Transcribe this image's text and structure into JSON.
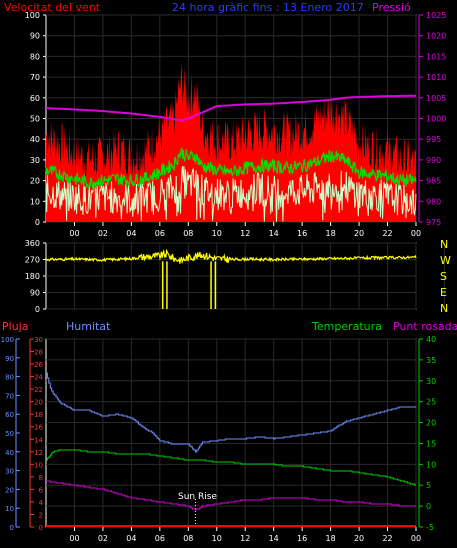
{
  "header": {
    "wind_title": "Velocitat del vent",
    "date_title": "24 hora gràfic fins : 13 Enero 2017",
    "pressure_title": "Pressió"
  },
  "compass_letters": [
    "N",
    "W",
    "S",
    "E",
    "N"
  ],
  "bottom_header": {
    "rain_label": "Pluja",
    "humidity_label": "Humitat",
    "temperature_label": "Temperatura",
    "dewpoint_label": "Punt rosada"
  },
  "annotation": {
    "sunrise": "Sun Rise",
    "sunrise_hour": 8.5
  },
  "colors": {
    "wind_gust": "#ff0000",
    "wind_avg": "#00e000",
    "wind_speed": "#ccffcc",
    "pressure": "#dd00dd",
    "direction": "#ffff00",
    "humidity": "#6f8fff",
    "temperature": "#00d000",
    "dewpoint": "#dd00dd",
    "rain": "#ff0000",
    "axis_white": "#ffffff",
    "grid": "#2a2a2a"
  },
  "chart_data": [
    {
      "id": "wind-pressure",
      "type": "line",
      "ylim_left": [
        0,
        100
      ],
      "yticks_left": [
        "0",
        "10",
        "20",
        "30",
        "40",
        "50",
        "60",
        "70",
        "80",
        "90",
        "100"
      ],
      "ylim_right": [
        975,
        1025
      ],
      "yticks_right": [
        "975",
        "980",
        "985",
        "990",
        "995",
        "1000",
        "1005",
        "1010",
        "1015",
        "1020",
        "1025"
      ],
      "xlim": [
        -2,
        24
      ],
      "xticks": [
        "00",
        "02",
        "04",
        "06",
        "08",
        "10",
        "12",
        "14",
        "16",
        "18",
        "20",
        "22",
        "00"
      ],
      "series": [
        {
          "key": "gust",
          "axis": "left",
          "x": [
            -2,
            -1,
            0,
            1,
            2,
            3,
            4,
            5,
            6,
            7,
            7.5,
            8,
            8.5,
            9,
            10,
            11,
            12,
            13,
            14,
            15,
            16,
            17,
            18,
            19,
            20,
            21,
            22,
            23,
            24
          ],
          "y": [
            42,
            38,
            33,
            30,
            31,
            36,
            32,
            34,
            42,
            50,
            68,
            60,
            64,
            45,
            40,
            38,
            42,
            45,
            44,
            42,
            44,
            48,
            55,
            50,
            38,
            36,
            34,
            30,
            28
          ]
        },
        {
          "key": "avg",
          "axis": "left",
          "x": [
            -2,
            -1,
            0,
            1,
            2,
            3,
            4,
            5,
            6,
            7,
            7.5,
            8,
            8.5,
            9,
            10,
            11,
            12,
            13,
            14,
            15,
            16,
            17,
            18,
            19,
            20,
            21,
            22,
            23,
            24
          ],
          "y": [
            25,
            23,
            21,
            19,
            20,
            21,
            20,
            21,
            24,
            28,
            34,
            31,
            32,
            27,
            25,
            24,
            26,
            27,
            27,
            26,
            27,
            29,
            32,
            30,
            24,
            23,
            22,
            20,
            20
          ]
        },
        {
          "key": "speed",
          "axis": "left",
          "x": [
            -2,
            -1,
            0,
            1,
            2,
            3,
            4,
            5,
            6,
            7,
            7.5,
            8,
            8.5,
            9,
            10,
            11,
            12,
            13,
            14,
            15,
            16,
            17,
            18,
            19,
            20,
            21,
            22,
            23,
            24
          ],
          "y": [
            15,
            13,
            12,
            11,
            12,
            12,
            11,
            12,
            14,
            16,
            20,
            18,
            19,
            15,
            14,
            13,
            15,
            16,
            15,
            15,
            15,
            16,
            18,
            17,
            14,
            13,
            12,
            11,
            10
          ]
        },
        {
          "key": "pressure",
          "axis": "right",
          "x": [
            -2,
            0,
            2,
            4,
            6,
            7,
            7.5,
            8,
            9,
            10,
            12,
            14,
            16,
            18,
            19,
            20,
            22,
            24
          ],
          "y": [
            1002.5,
            1002.2,
            1001.8,
            1001.2,
            1000.4,
            999.8,
            999.5,
            1000,
            1001.5,
            1003,
            1003.4,
            1003.6,
            1004,
            1004.5,
            1005,
            1005.2,
            1005.4,
            1005.5
          ]
        }
      ]
    },
    {
      "id": "wind-direction",
      "type": "scatter",
      "ylim": [
        0,
        360
      ],
      "yticks": [
        "0",
        "90",
        "180",
        "270",
        "360"
      ],
      "xlim": [
        -2,
        24
      ],
      "series": [
        {
          "key": "direction",
          "x": [
            -2,
            0,
            2,
            4,
            5,
            6,
            6.5,
            7,
            7.5,
            8,
            9,
            9.5,
            10,
            11,
            12,
            14,
            16,
            18,
            20,
            22,
            24
          ],
          "y": [
            270,
            272,
            268,
            275,
            285,
            290,
            300,
            275,
            265,
            280,
            295,
            285,
            275,
            270,
            272,
            270,
            272,
            275,
            278,
            280,
            282
          ]
        }
      ],
      "drops_x": [
        6.2,
        6.5,
        9.6,
        9.9
      ]
    },
    {
      "id": "temp-humidity",
      "type": "line",
      "ylim_rain": [
        0,
        30
      ],
      "yticks_rain": [
        "0",
        "2",
        "4",
        "6",
        "8",
        "10",
        "12",
        "14",
        "16",
        "18",
        "20",
        "22",
        "24",
        "26",
        "28",
        "30"
      ],
      "ylim_humidity": [
        0,
        100
      ],
      "yticks_humidity": [
        "0",
        "10",
        "20",
        "30",
        "40",
        "50",
        "60",
        "70",
        "80",
        "90",
        "100"
      ],
      "ylim_temp": [
        -5,
        40
      ],
      "yticks_temp": [
        "-5",
        "0",
        "5",
        "10",
        "15",
        "20",
        "25",
        "30",
        "35",
        "40"
      ],
      "xlim": [
        -2,
        24
      ],
      "xticks": [
        "00",
        "02",
        "04",
        "06",
        "08",
        "10",
        "12",
        "14",
        "16",
        "18",
        "20",
        "22",
        "00"
      ],
      "series": [
        {
          "key": "humidity",
          "axis": "humidity",
          "x": [
            -2,
            -1.7,
            -1.5,
            -1,
            -0.5,
            0,
            1,
            2,
            3,
            4,
            5,
            5.5,
            6,
            7,
            8,
            8.5,
            9,
            10,
            11,
            12,
            13,
            14,
            15,
            16,
            17,
            18,
            19,
            20,
            21,
            22,
            23,
            24
          ],
          "y": [
            82,
            74,
            71,
            66,
            64,
            62,
            62,
            59,
            60,
            58,
            52,
            50,
            46,
            44,
            44,
            40,
            45,
            46,
            47,
            47,
            48,
            47,
            48,
            49,
            50,
            51,
            56,
            58,
            60,
            62,
            64,
            64
          ]
        },
        {
          "key": "temperature",
          "axis": "temp",
          "x": [
            -2,
            -1.5,
            -1,
            0,
            1,
            2,
            3,
            4,
            5,
            6,
            7,
            8,
            9,
            10,
            11,
            12,
            13,
            14,
            15,
            16,
            17,
            18,
            19,
            20,
            21,
            22,
            23,
            24
          ],
          "y": [
            11,
            13,
            13.5,
            13.5,
            13,
            13,
            12.5,
            12.5,
            12.5,
            12,
            11.5,
            11,
            11,
            10.5,
            10.5,
            10,
            10,
            10,
            9.5,
            9.5,
            9,
            8.5,
            8.5,
            8,
            7.5,
            7,
            6,
            5
          ]
        },
        {
          "key": "dewpoint",
          "axis": "temp",
          "x": [
            -2,
            -1,
            0,
            1,
            2,
            3,
            4,
            5,
            6,
            7,
            8,
            8.5,
            9,
            10,
            11,
            12,
            13,
            14,
            15,
            16,
            17,
            18,
            19,
            20,
            21,
            22,
            23,
            24
          ],
          "y": [
            6,
            5.5,
            5,
            4.5,
            4,
            3,
            2,
            1.5,
            1,
            0.5,
            0,
            -1,
            0,
            0.5,
            1,
            1.5,
            1.5,
            2,
            2,
            2,
            1.5,
            1.5,
            1,
            1,
            0.5,
            0.5,
            0,
            0
          ]
        },
        {
          "key": "rain",
          "axis": "rain",
          "x": [
            -2,
            24
          ],
          "y": [
            0,
            0
          ]
        }
      ]
    }
  ]
}
